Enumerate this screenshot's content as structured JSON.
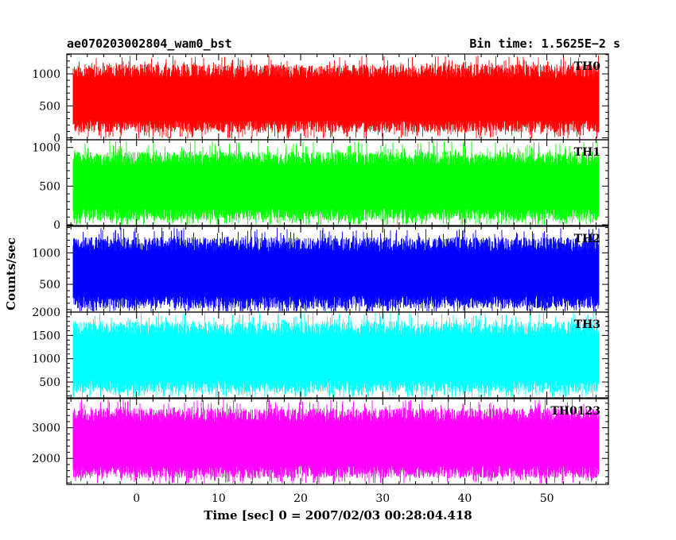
{
  "header": {
    "left": "ae070203002804_wam0_bst",
    "right": "Bin time: 1.5625E−2 s"
  },
  "colors": {
    "th0": "#ff0000",
    "th1": "#00ff00",
    "th2": "#0000ff",
    "th3": "#00ffff",
    "th0123": "#ff00ff"
  },
  "chart_data": {
    "type": "line",
    "xlabel": "Time [sec] 0 = 2007/02/03 00:28:04.418",
    "ylabel": "Counts/sec",
    "xlim": [
      -8.5,
      57.5
    ],
    "data_x_range": [
      -7.7,
      56.3
    ],
    "bin_time": 0.015625,
    "x_ticks": [
      0,
      10,
      20,
      30,
      40,
      50
    ],
    "grid": false,
    "panels": [
      {
        "name": "TH0",
        "color": "#ff0000",
        "ylim": [
          -30,
          1310
        ],
        "yticks": [
          0,
          500,
          1000
        ],
        "typical_min": 60,
        "typical_max": 1150,
        "peak": 1290
      },
      {
        "name": "TH1",
        "color": "#00ff00",
        "ylim": [
          -10,
          1100
        ],
        "yticks": [
          0,
          500,
          1000
        ],
        "typical_min": 30,
        "typical_max": 950,
        "peak": 1090
      },
      {
        "name": "TH2",
        "color": "#0000ff",
        "ylim": [
          60,
          1420
        ],
        "yticks": [
          500,
          1000
        ],
        "typical_min": 90,
        "typical_max": 1250,
        "peak": 1400
      },
      {
        "name": "TH3",
        "color": "#00ffff",
        "ylim": [
          160,
          2000
        ],
        "yticks": [
          500,
          1000,
          1500,
          2000
        ],
        "typical_min": 230,
        "typical_max": 1800,
        "peak": 2000
      },
      {
        "name": "TH0123",
        "color": "#ff00ff",
        "ylim": [
          1150,
          3950
        ],
        "yticks": [
          2000,
          3000
        ],
        "typical_min": 1300,
        "typical_max": 3650,
        "peak": 3950
      }
    ]
  }
}
